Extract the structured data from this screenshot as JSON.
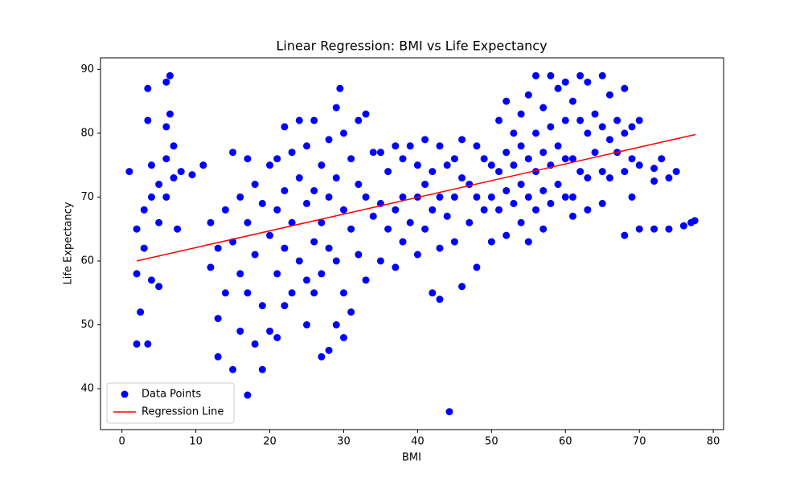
{
  "chart_data": {
    "type": "scatter",
    "title": "Linear Regression: BMI vs Life Expectancy",
    "x_label": "BMI",
    "y_label": "Life Expectancy",
    "xlim": [
      -2.9,
      81.4
    ],
    "ylim": [
      33.6,
      91.8
    ],
    "xticks": [
      0,
      10,
      20,
      30,
      40,
      50,
      60,
      70,
      80
    ],
    "yticks": [
      40,
      50,
      60,
      70,
      80,
      90
    ],
    "legend": "lower left",
    "series": [
      {
        "name": "Data Points",
        "color": "#0000ff",
        "type": "scatter",
        "x": [
          1,
          2,
          2,
          2.5,
          2,
          3,
          3,
          3.5,
          3.5,
          4,
          4,
          4,
          3.5,
          5,
          5,
          5,
          6,
          6,
          6,
          6,
          6.5,
          6.5,
          7,
          7,
          7.5,
          8,
          9.5,
          11,
          12,
          12,
          13,
          13,
          13,
          14,
          14,
          15,
          15,
          15,
          16,
          16,
          16,
          17,
          17,
          17,
          17,
          18,
          18,
          18,
          19,
          19,
          19,
          20,
          20,
          20,
          21,
          21,
          21,
          21,
          22,
          22,
          22,
          22,
          23,
          23,
          23,
          24,
          24,
          24,
          25,
          25,
          25,
          25,
          26,
          26,
          26,
          26,
          27,
          27,
          27,
          27,
          28,
          28,
          28,
          28,
          29,
          29,
          29,
          29,
          29.5,
          30,
          30,
          30,
          30,
          31,
          31,
          31,
          32,
          32,
          32,
          33,
          33,
          33,
          34,
          34,
          35,
          35,
          35,
          36,
          36,
          37,
          37,
          37,
          38,
          38,
          38,
          39,
          39,
          40,
          40,
          40,
          41,
          41,
          41,
          42,
          42,
          42,
          43,
          43,
          43,
          43,
          44,
          44,
          44.3,
          45,
          45,
          45,
          46,
          46,
          46,
          47,
          47,
          48,
          48,
          48,
          49,
          49,
          50,
          50,
          50,
          51,
          51,
          51,
          52,
          52,
          52,
          52,
          53,
          53,
          53,
          54,
          54,
          54,
          54,
          55,
          55,
          55,
          55,
          56,
          56,
          56,
          56,
          57,
          57,
          57,
          57,
          58,
          58,
          58,
          58,
          59,
          59,
          59,
          60,
          60,
          60,
          60,
          61,
          61,
          61,
          61,
          62,
          62,
          62,
          63,
          63,
          63,
          63,
          64,
          64,
          65,
          65,
          65,
          65,
          66,
          66,
          66,
          67,
          67,
          68,
          68,
          68,
          68,
          69,
          69,
          69,
          70,
          70,
          70,
          72,
          72,
          72,
          73,
          74,
          74,
          75,
          76,
          77,
          77.5
        ],
        "y": [
          74,
          65,
          58,
          52,
          47,
          62,
          68,
          87,
          82,
          75,
          70,
          57,
          47,
          72,
          66,
          56,
          88,
          81,
          76,
          70,
          89,
          83,
          78,
          73,
          65,
          74,
          73.5,
          75,
          66,
          59,
          62,
          51,
          45,
          68,
          55,
          77,
          63,
          43,
          70,
          58,
          49,
          76,
          66,
          55,
          39,
          72,
          61,
          47,
          69,
          53,
          43,
          75,
          64,
          49,
          76,
          68,
          58,
          48,
          81,
          71,
          62,
          53,
          77,
          66,
          55,
          82,
          73,
          60,
          78,
          69,
          57,
          50,
          82,
          71,
          63,
          55,
          75,
          66,
          45,
          58,
          79,
          70,
          62,
          46,
          84,
          73,
          60,
          50,
          87,
          80,
          68,
          55,
          48,
          76,
          65,
          52,
          82,
          72,
          61,
          83,
          70,
          57,
          77,
          67,
          77,
          69,
          60,
          74,
          65,
          78,
          68,
          59,
          76,
          70,
          63,
          78,
          66,
          75,
          70,
          61,
          79,
          72,
          65,
          74,
          68,
          55,
          78,
          70,
          62,
          54,
          75,
          67,
          36.4,
          76,
          70,
          63,
          79,
          73,
          56,
          72,
          66,
          78,
          70,
          59,
          76,
          68,
          75,
          70,
          63,
          82,
          74,
          68,
          85,
          77,
          71,
          64,
          80,
          75,
          69,
          83,
          78,
          72,
          66,
          86,
          76,
          70,
          63,
          89,
          80,
          74,
          68,
          84,
          77,
          71,
          65,
          89,
          81,
          75,
          69,
          87,
          78,
          72,
          88,
          82,
          76,
          70,
          85,
          76,
          70,
          67,
          89,
          82,
          74,
          88,
          80,
          73,
          68,
          83,
          77,
          89,
          81,
          74,
          69,
          86,
          79,
          73,
          82,
          77,
          87,
          80,
          74,
          64,
          81,
          76,
          70,
          82,
          75,
          65,
          74.5,
          72.5,
          65,
          76,
          73,
          65,
          74,
          65.5,
          66,
          66.3
        ]
      },
      {
        "name": "Regression Line",
        "color": "#ff0000",
        "type": "line",
        "x": [
          2,
          77.6
        ],
        "y": [
          60,
          79.8
        ]
      }
    ]
  }
}
